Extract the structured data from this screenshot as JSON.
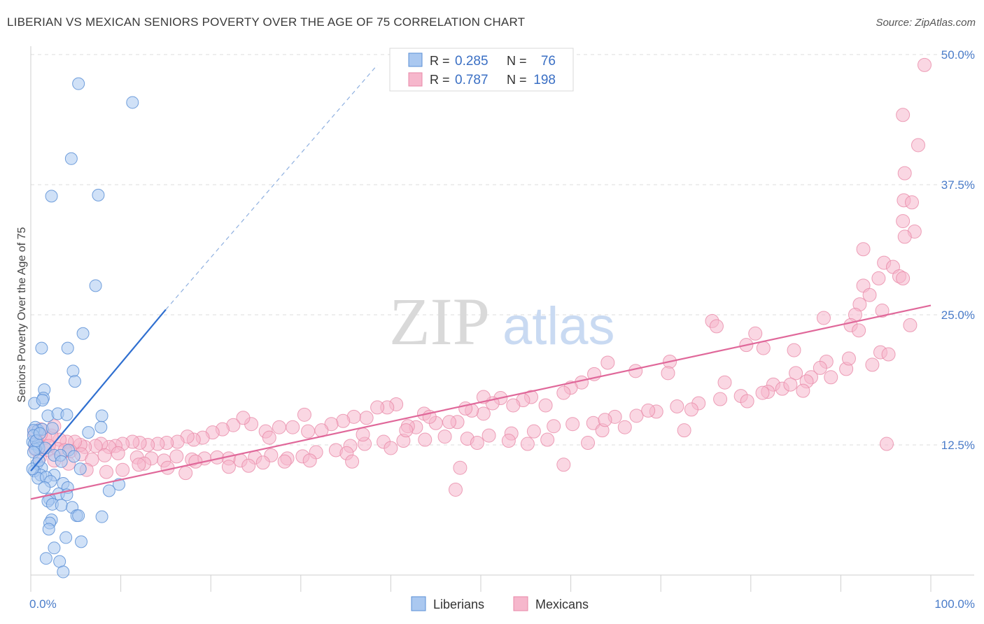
{
  "title": "LIBERIAN VS MEXICAN SENIORS POVERTY OVER THE AGE OF 75 CORRELATION CHART",
  "source": "Source: ZipAtlas.com",
  "watermark": {
    "zip": "ZIP",
    "atlas": "atlas"
  },
  "colors": {
    "liberian_fill": "#aac8f0",
    "liberian_stroke": "#5b8fd6",
    "liberian_line": "#2f6fd0",
    "mexican_fill": "#f6b7cc",
    "mexican_stroke": "#e889a8",
    "mexican_line": "#e0689a",
    "axis_label": "#4a7cc9",
    "grid": "#dddddd"
  },
  "legend": {
    "rows": [
      {
        "r_label": "R = ",
        "r_value": "0.285",
        "n_label": "N = ",
        "n_value": "76"
      },
      {
        "r_label": "R = ",
        "r_value": "0.787",
        "n_label": "N = ",
        "n_value": "198"
      }
    ]
  },
  "chart_data": {
    "type": "scatter",
    "title": "LIBERIAN VS MEXICAN SENIORS POVERTY OVER THE AGE OF 75 CORRELATION CHART",
    "xlabel": "",
    "ylabel": "Seniors Poverty Over the Age of 75",
    "xlim": [
      0,
      100
    ],
    "ylim": [
      0,
      50
    ],
    "x_ticks": [
      "0.0%",
      "100.0%"
    ],
    "y_ticks": [
      {
        "value": 12.5,
        "label": "12.5%"
      },
      {
        "value": 25.0,
        "label": "25.0%"
      },
      {
        "value": 37.5,
        "label": "37.5%"
      },
      {
        "value": 50.0,
        "label": "50.0%"
      }
    ],
    "grid": true,
    "legend_position": "top-center",
    "series": [
      {
        "name": "Liberians",
        "R": 0.285,
        "N": 76,
        "trendline": {
          "x": [
            0,
            15
          ],
          "y": [
            10,
            25.5
          ],
          "dashed_to": [
            38.5,
            49
          ]
        },
        "points": [
          [
            5.3,
            47.2
          ],
          [
            11.3,
            45.4
          ],
          [
            4.5,
            40.0
          ],
          [
            2.3,
            36.4
          ],
          [
            7.5,
            36.5
          ],
          [
            7.2,
            27.8
          ],
          [
            5.8,
            23.2
          ],
          [
            1.2,
            21.8
          ],
          [
            4.1,
            21.8
          ],
          [
            4.7,
            19.6
          ],
          [
            4.9,
            18.6
          ],
          [
            1.5,
            17.8
          ],
          [
            1.4,
            17.0
          ],
          [
            0.4,
            16.5
          ],
          [
            1.3,
            16.8
          ],
          [
            1.9,
            15.3
          ],
          [
            3.0,
            15.5
          ],
          [
            4.0,
            15.4
          ],
          [
            7.9,
            15.3
          ],
          [
            0.5,
            14.2
          ],
          [
            0.8,
            13.9
          ],
          [
            1.3,
            14.0
          ],
          [
            2.4,
            14.1
          ],
          [
            0.3,
            13.9
          ],
          [
            7.8,
            14.2
          ],
          [
            6.4,
            13.7
          ],
          [
            0.2,
            12.8
          ],
          [
            0.4,
            12.6
          ],
          [
            0.8,
            12.5
          ],
          [
            0.9,
            12.2
          ],
          [
            0.5,
            12.1
          ],
          [
            1.6,
            12.2
          ],
          [
            4.2,
            12.0
          ],
          [
            0.3,
            11.8
          ],
          [
            2.6,
            11.5
          ],
          [
            3.3,
            11.5
          ],
          [
            4.8,
            11.4
          ],
          [
            3.4,
            10.9
          ],
          [
            0.7,
            10.7
          ],
          [
            1.2,
            10.3
          ],
          [
            5.5,
            10.2
          ],
          [
            0.4,
            10.0
          ],
          [
            1.1,
            9.6
          ],
          [
            0.8,
            9.3
          ],
          [
            2.6,
            9.6
          ],
          [
            1.7,
            9.4
          ],
          [
            2.2,
            9.0
          ],
          [
            3.6,
            8.8
          ],
          [
            9.8,
            8.7
          ],
          [
            1.5,
            8.4
          ],
          [
            4.1,
            8.4
          ],
          [
            8.7,
            8.1
          ],
          [
            3.1,
            7.8
          ],
          [
            4.0,
            7.7
          ],
          [
            2.1,
            7.3
          ],
          [
            1.9,
            7.1
          ],
          [
            2.4,
            6.8
          ],
          [
            3.4,
            6.7
          ],
          [
            4.6,
            6.5
          ],
          [
            5.1,
            5.7
          ],
          [
            5.3,
            5.7
          ],
          [
            7.9,
            5.6
          ],
          [
            2.3,
            5.3
          ],
          [
            2.1,
            5.0
          ],
          [
            2.0,
            4.4
          ],
          [
            3.9,
            3.6
          ],
          [
            5.6,
            3.2
          ],
          [
            2.6,
            2.6
          ],
          [
            1.7,
            1.6
          ],
          [
            3.2,
            1.3
          ],
          [
            3.6,
            0.3
          ],
          [
            0.3,
            13.4
          ],
          [
            0.6,
            12.9
          ],
          [
            1.0,
            13.6
          ],
          [
            0.2,
            10.2
          ],
          [
            0.9,
            11.0
          ]
        ]
      },
      {
        "name": "Mexicans",
        "R": 0.787,
        "N": 198,
        "trendline": {
          "x": [
            0,
            100
          ],
          "y": [
            7.3,
            25.9
          ]
        },
        "points": [
          [
            99.3,
            49.0
          ],
          [
            96.9,
            44.2
          ],
          [
            98.6,
            41.3
          ],
          [
            97.1,
            38.6
          ],
          [
            97.0,
            36.0
          ],
          [
            97.9,
            35.8
          ],
          [
            96.9,
            34.0
          ],
          [
            98.2,
            33.0
          ],
          [
            97.1,
            32.5
          ],
          [
            92.5,
            31.3
          ],
          [
            94.8,
            30.0
          ],
          [
            95.8,
            29.6
          ],
          [
            96.5,
            28.7
          ],
          [
            96.9,
            28.5
          ],
          [
            94.2,
            28.5
          ],
          [
            92.5,
            27.8
          ],
          [
            93.2,
            26.9
          ],
          [
            92.1,
            26.0
          ],
          [
            94.6,
            25.4
          ],
          [
            91.6,
            25.0
          ],
          [
            88.1,
            24.7
          ],
          [
            91.1,
            24.0
          ],
          [
            92.0,
            23.5
          ],
          [
            97.7,
            24.0
          ],
          [
            75.7,
            24.4
          ],
          [
            76.2,
            23.9
          ],
          [
            80.5,
            23.2
          ],
          [
            79.5,
            22.1
          ],
          [
            81.4,
            21.8
          ],
          [
            84.8,
            21.6
          ],
          [
            94.4,
            21.4
          ],
          [
            95.3,
            21.2
          ],
          [
            93.5,
            20.2
          ],
          [
            88.4,
            20.5
          ],
          [
            87.7,
            19.9
          ],
          [
            85.0,
            19.4
          ],
          [
            86.7,
            19.0
          ],
          [
            86.2,
            18.6
          ],
          [
            82.5,
            18.3
          ],
          [
            77.1,
            18.5
          ],
          [
            81.9,
            17.6
          ],
          [
            85.8,
            17.7
          ],
          [
            71.0,
            20.5
          ],
          [
            70.8,
            19.4
          ],
          [
            67.2,
            19.6
          ],
          [
            64.1,
            20.4
          ],
          [
            62.6,
            19.3
          ],
          [
            61.2,
            18.5
          ],
          [
            60.0,
            18.0
          ],
          [
            59.2,
            17.5
          ],
          [
            57.2,
            16.3
          ],
          [
            55.6,
            17.1
          ],
          [
            54.7,
            16.8
          ],
          [
            53.6,
            16.3
          ],
          [
            52.2,
            17.0
          ],
          [
            51.3,
            16.5
          ],
          [
            50.3,
            15.5
          ],
          [
            49.0,
            15.8
          ],
          [
            48.3,
            16.0
          ],
          [
            47.4,
            14.7
          ],
          [
            46.5,
            14.7
          ],
          [
            45.0,
            14.6
          ],
          [
            43.7,
            15.5
          ],
          [
            42.8,
            14.2
          ],
          [
            41.9,
            14.3
          ],
          [
            40.6,
            16.4
          ],
          [
            39.6,
            16.1
          ],
          [
            38.5,
            16.1
          ],
          [
            37.3,
            15.1
          ],
          [
            35.9,
            15.2
          ],
          [
            34.7,
            14.8
          ],
          [
            33.4,
            14.5
          ],
          [
            32.3,
            13.9
          ],
          [
            30.4,
            15.4
          ],
          [
            29.1,
            14.2
          ],
          [
            27.6,
            14.2
          ],
          [
            26.1,
            13.8
          ],
          [
            24.5,
            14.5
          ],
          [
            23.6,
            15.1
          ],
          [
            22.5,
            14.4
          ],
          [
            21.3,
            14.0
          ],
          [
            20.2,
            13.7
          ],
          [
            19.1,
            13.2
          ],
          [
            18.1,
            13.0
          ],
          [
            17.4,
            13.3
          ],
          [
            16.3,
            12.8
          ],
          [
            15.1,
            12.7
          ],
          [
            14.1,
            12.6
          ],
          [
            13.0,
            12.5
          ],
          [
            12.1,
            12.7
          ],
          [
            11.3,
            12.8
          ],
          [
            10.2,
            12.6
          ],
          [
            9.4,
            12.4
          ],
          [
            8.7,
            12.3
          ],
          [
            7.8,
            12.6
          ],
          [
            7.2,
            12.4
          ],
          [
            6.0,
            12.3
          ],
          [
            5.5,
            12.5
          ],
          [
            4.9,
            12.8
          ],
          [
            4.0,
            12.8
          ],
          [
            3.2,
            13.0
          ],
          [
            2.3,
            13.4
          ],
          [
            1.6,
            13.2
          ],
          [
            1.1,
            13.5
          ],
          [
            0.7,
            12.8
          ],
          [
            0.4,
            13.7
          ],
          [
            1.9,
            12.0
          ],
          [
            3.0,
            12.1
          ],
          [
            4.4,
            11.9
          ],
          [
            5.6,
            11.6
          ],
          [
            6.8,
            11.1
          ],
          [
            8.2,
            11.5
          ],
          [
            9.7,
            11.7
          ],
          [
            11.8,
            11.3
          ],
          [
            13.4,
            11.2
          ],
          [
            14.8,
            11.0
          ],
          [
            16.2,
            11.4
          ],
          [
            17.9,
            11.1
          ],
          [
            19.3,
            11.2
          ],
          [
            20.7,
            11.3
          ],
          [
            22.0,
            11.2
          ],
          [
            23.3,
            11.0
          ],
          [
            24.9,
            11.3
          ],
          [
            26.7,
            11.5
          ],
          [
            28.5,
            11.2
          ],
          [
            30.2,
            11.4
          ],
          [
            31.7,
            11.8
          ],
          [
            33.9,
            12.0
          ],
          [
            35.5,
            12.4
          ],
          [
            37.1,
            12.6
          ],
          [
            39.2,
            12.8
          ],
          [
            41.4,
            12.9
          ],
          [
            43.8,
            13.0
          ],
          [
            46.0,
            13.3
          ],
          [
            48.5,
            13.1
          ],
          [
            50.9,
            13.4
          ],
          [
            53.4,
            13.6
          ],
          [
            55.9,
            13.8
          ],
          [
            58.1,
            14.3
          ],
          [
            60.2,
            14.5
          ],
          [
            62.5,
            14.6
          ],
          [
            64.9,
            15.2
          ],
          [
            67.3,
            15.3
          ],
          [
            69.5,
            15.7
          ],
          [
            71.8,
            16.2
          ],
          [
            74.2,
            16.5
          ],
          [
            76.6,
            16.9
          ],
          [
            78.9,
            17.2
          ],
          [
            81.3,
            17.5
          ],
          [
            83.5,
            17.9
          ],
          [
            61.9,
            12.7
          ],
          [
            57.4,
            13.0
          ],
          [
            53.1,
            12.9
          ],
          [
            49.6,
            12.7
          ],
          [
            72.6,
            13.9
          ],
          [
            66.0,
            14.2
          ],
          [
            63.5,
            13.9
          ],
          [
            40.0,
            12.2
          ],
          [
            35.1,
            11.7
          ],
          [
            31.0,
            11.0
          ],
          [
            25.8,
            10.8
          ],
          [
            22.0,
            10.4
          ],
          [
            18.3,
            10.9
          ],
          [
            15.2,
            10.3
          ],
          [
            12.6,
            10.7
          ],
          [
            10.2,
            10.1
          ],
          [
            8.4,
            9.9
          ],
          [
            6.2,
            10.1
          ],
          [
            4.2,
            10.7
          ],
          [
            2.6,
            11.0
          ],
          [
            1.0,
            11.3
          ],
          [
            3.8,
            12.0
          ],
          [
            2.0,
            12.4
          ],
          [
            28.2,
            10.9
          ],
          [
            35.7,
            10.9
          ],
          [
            47.7,
            10.3
          ],
          [
            59.2,
            10.6
          ],
          [
            17.2,
            9.8
          ],
          [
            12.0,
            10.6
          ],
          [
            95.1,
            12.6
          ],
          [
            50.3,
            17.1
          ],
          [
            44.3,
            15.2
          ],
          [
            30.8,
            13.8
          ],
          [
            36.9,
            13.5
          ],
          [
            26.5,
            13.2
          ],
          [
            41.7,
            13.9
          ],
          [
            55.2,
            12.6
          ],
          [
            63.8,
            14.9
          ],
          [
            68.6,
            15.8
          ],
          [
            73.4,
            15.9
          ],
          [
            79.6,
            16.7
          ],
          [
            84.4,
            18.3
          ],
          [
            88.9,
            19.0
          ],
          [
            90.6,
            19.8
          ],
          [
            90.9,
            20.8
          ],
          [
            47.2,
            8.2
          ],
          [
            1.1,
            14.0
          ],
          [
            2.6,
            14.3
          ],
          [
            0.5,
            12.1
          ],
          [
            24.2,
            10.5
          ]
        ]
      }
    ]
  },
  "bottom_legend": [
    {
      "label": "Liberians"
    },
    {
      "label": "Mexicans"
    }
  ]
}
